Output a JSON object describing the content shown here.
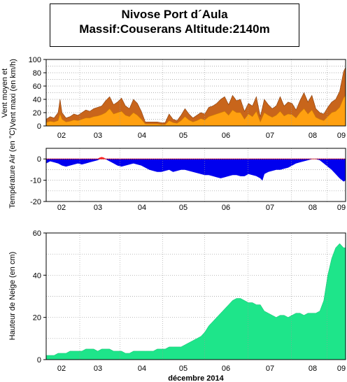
{
  "title": {
    "line1": "Nivose Port d´Aula",
    "line2": "Massif:Couserans Altitude:2140m"
  },
  "xlabel": "décembre 2014",
  "colors": {
    "wind_max": "#c8651b",
    "wind_mean": "#ffa010",
    "temp_negative": "#0000ee",
    "temp_positive": "#ff2020",
    "snow": "#1ee58a",
    "grid": "#999999"
  },
  "chart_data": [
    {
      "type": "area",
      "ylabel_lines": [
        "Vent moyen et",
        "Vent maxi (en km/h)"
      ],
      "ylim": [
        0,
        100
      ],
      "yticks": [
        0,
        20,
        40,
        60,
        80,
        100
      ],
      "xticks": [
        "02",
        "03",
        "04",
        "05",
        "06",
        "07",
        "08",
        "09"
      ],
      "xrange_days": [
        1.6,
        9.15
      ],
      "grid": true,
      "series": [
        {
          "key": "max",
          "x": [
            1.6,
            1.7,
            1.8,
            1.9,
            1.95,
            2.0,
            2.1,
            2.2,
            2.3,
            2.4,
            2.5,
            2.6,
            2.7,
            2.8,
            2.9,
            3.0,
            3.1,
            3.2,
            3.3,
            3.4,
            3.5,
            3.6,
            3.7,
            3.8,
            3.9,
            4.0,
            4.1,
            4.2,
            4.3,
            4.4,
            4.5,
            4.6,
            4.7,
            4.8,
            4.9,
            5.0,
            5.1,
            5.2,
            5.3,
            5.4,
            5.5,
            5.6,
            5.7,
            5.8,
            5.9,
            6.0,
            6.1,
            6.2,
            6.3,
            6.4,
            6.5,
            6.6,
            6.7,
            6.8,
            6.9,
            7.0,
            7.1,
            7.2,
            7.3,
            7.4,
            7.5,
            7.6,
            7.7,
            7.8,
            7.9,
            8.0,
            8.1,
            8.2,
            8.3,
            8.4,
            8.5,
            8.6,
            8.7,
            8.8,
            8.9,
            9.0,
            9.1,
            9.15
          ],
          "values": [
            10,
            14,
            12,
            20,
            40,
            20,
            12,
            14,
            18,
            16,
            20,
            24,
            22,
            26,
            28,
            30,
            38,
            44,
            32,
            36,
            42,
            30,
            26,
            40,
            34,
            22,
            6,
            6,
            6,
            6,
            5,
            5,
            18,
            10,
            8,
            16,
            26,
            18,
            12,
            16,
            20,
            18,
            28,
            30,
            34,
            40,
            44,
            32,
            46,
            38,
            40,
            22,
            34,
            30,
            44,
            14,
            40,
            32,
            26,
            30,
            44,
            30,
            36,
            34,
            24,
            38,
            50,
            36,
            46,
            26,
            20,
            18,
            28,
            36,
            40,
            52,
            82,
            88
          ]
        },
        {
          "key": "mean",
          "x": [
            1.6,
            1.7,
            1.8,
            1.9,
            1.95,
            2.0,
            2.1,
            2.2,
            2.3,
            2.4,
            2.5,
            2.6,
            2.7,
            2.8,
            2.9,
            3.0,
            3.1,
            3.2,
            3.3,
            3.4,
            3.5,
            3.6,
            3.7,
            3.8,
            3.9,
            4.0,
            4.1,
            4.2,
            4.3,
            4.4,
            4.5,
            4.6,
            4.7,
            4.8,
            4.9,
            5.0,
            5.1,
            5.2,
            5.3,
            5.4,
            5.5,
            5.6,
            5.7,
            5.8,
            5.9,
            6.0,
            6.1,
            6.2,
            6.3,
            6.4,
            6.5,
            6.6,
            6.7,
            6.8,
            6.9,
            7.0,
            7.1,
            7.2,
            7.3,
            7.4,
            7.5,
            7.6,
            7.7,
            7.8,
            7.9,
            8.0,
            8.1,
            8.2,
            8.3,
            8.4,
            8.5,
            8.6,
            8.7,
            8.8,
            8.9,
            9.0,
            9.1,
            9.15
          ],
          "values": [
            5,
            7,
            6,
            8,
            18,
            10,
            6,
            7,
            9,
            8,
            10,
            12,
            12,
            14,
            15,
            17,
            20,
            26,
            18,
            20,
            22,
            16,
            14,
            20,
            16,
            10,
            3,
            3,
            3,
            3,
            2,
            2,
            8,
            5,
            4,
            8,
            14,
            9,
            6,
            8,
            11,
            9,
            14,
            16,
            18,
            20,
            22,
            16,
            24,
            20,
            20,
            10,
            18,
            14,
            22,
            6,
            20,
            16,
            13,
            16,
            22,
            15,
            18,
            17,
            12,
            20,
            26,
            18,
            24,
            13,
            10,
            8,
            14,
            20,
            22,
            28,
            42,
            46
          ]
        }
      ]
    },
    {
      "type": "area",
      "ylabel_lines": [
        "Température Air (en °C)"
      ],
      "ylim": [
        -20,
        5
      ],
      "yticks": [
        0,
        -10,
        -20
      ],
      "xticks": [
        "02",
        "03",
        "04",
        "05",
        "06",
        "07",
        "08",
        "09"
      ],
      "xrange_days": [
        1.6,
        9.15
      ],
      "grid": true,
      "series": [
        {
          "key": "temp",
          "x": [
            1.6,
            1.7,
            1.8,
            1.9,
            2.0,
            2.1,
            2.2,
            2.3,
            2.4,
            2.5,
            2.6,
            2.7,
            2.8,
            2.9,
            2.95,
            3.0,
            3.05,
            3.1,
            3.2,
            3.3,
            3.4,
            3.5,
            3.6,
            3.7,
            3.8,
            3.9,
            4.0,
            4.1,
            4.2,
            4.3,
            4.4,
            4.5,
            4.6,
            4.7,
            4.8,
            4.9,
            5.0,
            5.1,
            5.2,
            5.3,
            5.4,
            5.5,
            5.6,
            5.7,
            5.8,
            5.9,
            6.0,
            6.1,
            6.2,
            6.3,
            6.4,
            6.5,
            6.6,
            6.7,
            6.8,
            6.9,
            7.0,
            7.05,
            7.1,
            7.2,
            7.3,
            7.4,
            7.5,
            7.6,
            7.7,
            7.8,
            7.9,
            8.0,
            8.1,
            8.2,
            8.3,
            8.4,
            8.5,
            8.6,
            8.7,
            8.8,
            8.9,
            9.0,
            9.1,
            9.15
          ],
          "values": [
            -2,
            -1,
            -1.5,
            -2,
            -3,
            -3.5,
            -3,
            -2.5,
            -2,
            -2.5,
            -2,
            -1.5,
            -1,
            -0.5,
            0.5,
            0.8,
            0.5,
            0,
            -1,
            -2,
            -3,
            -3.5,
            -3,
            -2.5,
            -2,
            -2.5,
            -3,
            -4,
            -5,
            -5.5,
            -6,
            -6,
            -5.5,
            -5,
            -6,
            -5.5,
            -5,
            -5,
            -5.5,
            -6,
            -6.5,
            -7,
            -7.5,
            -7.5,
            -8,
            -8.5,
            -9,
            -8.5,
            -8,
            -7.5,
            -7.5,
            -8,
            -8,
            -7,
            -7.5,
            -8,
            -9,
            -10,
            -7,
            -6,
            -5.5,
            -5,
            -5,
            -4.5,
            -4,
            -3,
            -2,
            -1.5,
            -1,
            -0.5,
            0,
            0,
            -0.5,
            -2,
            -3.5,
            -5,
            -7,
            -9,
            -10.5,
            -10
          ]
        }
      ]
    },
    {
      "type": "area",
      "ylabel_lines": [
        "Hauteur de Neige (en cm)"
      ],
      "ylim": [
        0,
        60
      ],
      "yticks": [
        0,
        20,
        40,
        60
      ],
      "xticks": [
        "02",
        "03",
        "04",
        "05",
        "06",
        "07",
        "08",
        "09"
      ],
      "xrange_days": [
        1.6,
        9.15
      ],
      "grid": true,
      "series": [
        {
          "key": "snow",
          "x": [
            1.6,
            1.7,
            1.8,
            1.9,
            2.0,
            2.1,
            2.2,
            2.3,
            2.4,
            2.5,
            2.6,
            2.7,
            2.8,
            2.9,
            3.0,
            3.1,
            3.2,
            3.3,
            3.4,
            3.5,
            3.6,
            3.7,
            3.8,
            3.9,
            4.0,
            4.1,
            4.2,
            4.3,
            4.4,
            4.5,
            4.6,
            4.7,
            4.8,
            4.9,
            5.0,
            5.1,
            5.2,
            5.3,
            5.4,
            5.5,
            5.6,
            5.7,
            5.8,
            5.9,
            6.0,
            6.1,
            6.2,
            6.3,
            6.4,
            6.5,
            6.6,
            6.7,
            6.8,
            6.9,
            7.0,
            7.1,
            7.2,
            7.3,
            7.4,
            7.5,
            7.6,
            7.7,
            7.8,
            7.9,
            8.0,
            8.1,
            8.2,
            8.3,
            8.4,
            8.5,
            8.6,
            8.7,
            8.8,
            8.9,
            9.0,
            9.1,
            9.15
          ],
          "values": [
            2,
            2,
            2,
            3,
            3,
            3,
            4,
            4,
            4,
            4,
            5,
            5,
            5,
            4,
            5,
            5,
            5,
            4,
            4,
            4,
            3,
            3,
            4,
            4,
            4,
            4,
            4,
            4,
            5,
            5,
            5,
            6,
            6,
            6,
            6,
            7,
            8,
            9,
            10,
            11,
            13,
            16,
            18,
            20,
            22,
            24,
            26,
            28,
            29,
            29,
            28,
            27,
            27,
            26,
            26,
            23,
            22,
            21,
            20,
            21,
            21,
            20,
            21,
            22,
            22,
            21,
            22,
            22,
            22,
            23,
            28,
            40,
            48,
            53,
            55,
            53,
            53
          ]
        }
      ]
    }
  ]
}
